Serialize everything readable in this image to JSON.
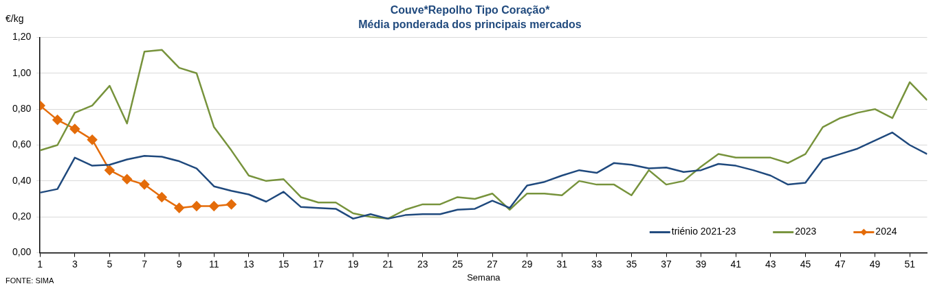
{
  "chart_data": {
    "type": "line",
    "title": "Couve*Repolho Tipo Coração*",
    "subtitle": "Média ponderada dos principais mercados",
    "xlabel": "Semana",
    "ylabel": "€/kg",
    "x": [
      1,
      2,
      3,
      4,
      5,
      6,
      7,
      8,
      9,
      10,
      11,
      12,
      13,
      14,
      15,
      16,
      17,
      18,
      19,
      20,
      21,
      22,
      23,
      24,
      25,
      26,
      27,
      28,
      29,
      30,
      31,
      32,
      33,
      34,
      35,
      36,
      37,
      38,
      39,
      40,
      41,
      42,
      43,
      44,
      45,
      46,
      47,
      48,
      49,
      50,
      51,
      52
    ],
    "series": [
      {
        "name": "triénio 2021-23",
        "color": "#1f497d",
        "marker": "none",
        "values": [
          0.335,
          0.355,
          0.53,
          0.485,
          0.49,
          0.52,
          0.54,
          0.535,
          0.51,
          0.47,
          0.37,
          0.345,
          0.325,
          0.285,
          0.34,
          0.255,
          0.25,
          0.245,
          0.19,
          0.215,
          0.19,
          0.21,
          0.215,
          0.215,
          0.24,
          0.245,
          0.29,
          0.25,
          0.375,
          0.395,
          0.43,
          0.46,
          0.445,
          0.5,
          0.49,
          0.47,
          0.475,
          0.45,
          0.46,
          0.495,
          0.485,
          0.46,
          0.43,
          0.38,
          0.39,
          0.52,
          0.55,
          0.58,
          0.625,
          0.67,
          0.6,
          0.55
        ]
      },
      {
        "name": "2023",
        "color": "#77933c",
        "marker": "none",
        "values": [
          0.57,
          0.6,
          0.78,
          0.82,
          0.93,
          0.72,
          1.12,
          1.13,
          1.03,
          1.0,
          0.7,
          0.57,
          0.43,
          0.4,
          0.41,
          0.31,
          0.28,
          0.28,
          0.22,
          0.2,
          0.19,
          0.24,
          0.27,
          0.27,
          0.31,
          0.3,
          0.33,
          0.24,
          0.33,
          0.33,
          0.32,
          0.4,
          0.38,
          0.38,
          0.32,
          0.46,
          0.38,
          0.4,
          0.48,
          0.55,
          0.53,
          0.53,
          0.53,
          0.5,
          0.55,
          0.7,
          0.75,
          0.78,
          0.8,
          0.75,
          0.95,
          0.85
        ]
      },
      {
        "name": "2024",
        "color": "#e46c0a",
        "marker": "diamond",
        "values": [
          0.82,
          0.74,
          0.69,
          0.63,
          0.46,
          0.41,
          0.38,
          0.31,
          0.25,
          0.26,
          0.26,
          0.27,
          null,
          null,
          null,
          null,
          null,
          null,
          null,
          null,
          null,
          null,
          null,
          null,
          null,
          null,
          null,
          null,
          null,
          null,
          null,
          null,
          null,
          null,
          null,
          null,
          null,
          null,
          null,
          null,
          null,
          null,
          null,
          null,
          null,
          null,
          null,
          null,
          null,
          null,
          null,
          null
        ]
      }
    ],
    "xlim": [
      1,
      52
    ],
    "xticks": [
      1,
      3,
      5,
      7,
      9,
      11,
      13,
      15,
      17,
      19,
      21,
      23,
      25,
      27,
      29,
      31,
      33,
      35,
      37,
      39,
      41,
      43,
      45,
      47,
      49,
      51
    ],
    "ylim": [
      0,
      1.2
    ],
    "yticks": [
      {
        "value": 0,
        "label": "0,00"
      },
      {
        "value": 0.2,
        "label": "0,20"
      },
      {
        "value": 0.4,
        "label": "0,40"
      },
      {
        "value": 0.6,
        "label": "0,60"
      },
      {
        "value": 0.8,
        "label": "0,80"
      },
      {
        "value": 1.0,
        "label": "1,00"
      },
      {
        "value": 1.2,
        "label": "1,20"
      }
    ],
    "grid": "y",
    "legend": "bottom right",
    "annotations": [
      "FONTE: SIMA"
    ]
  }
}
